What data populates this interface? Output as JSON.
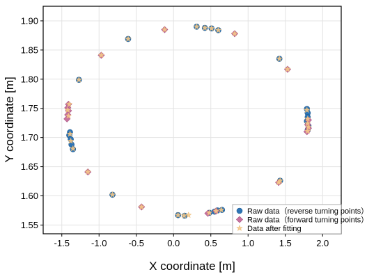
{
  "chart_data": {
    "type": "scatter",
    "xlabel": "X coordinate [m]",
    "ylabel": "Y coordinate [m]",
    "xlim": [
      -1.75,
      2.25
    ],
    "ylim": [
      1.535,
      1.925
    ],
    "x_ticks": [
      "-1.5",
      "-1.0",
      "-0.5",
      "0.0",
      "0.5",
      "1.0",
      "1.5",
      "2.0"
    ],
    "y_ticks": [
      "1.55",
      "1.60",
      "1.65",
      "1.70",
      "1.75",
      "1.80",
      "1.85",
      "1.90"
    ],
    "grid": true,
    "legend_position": "bottom-right",
    "series": [
      {
        "name": "Raw data（reverse turning points）",
        "marker": "circle",
        "color": "#2e75b6",
        "points": [
          [
            -1.39,
            1.709
          ],
          [
            -1.4,
            1.704
          ],
          [
            -1.38,
            1.697
          ],
          [
            -1.37,
            1.688
          ],
          [
            -1.35,
            1.68
          ],
          [
            -1.27,
            1.799
          ],
          [
            -0.61,
            1.869
          ],
          [
            -0.82,
            1.602
          ],
          [
            0.06,
            1.567
          ],
          [
            0.15,
            1.566
          ],
          [
            0.31,
            1.89
          ],
          [
            0.42,
            1.888
          ],
          [
            0.51,
            1.887
          ],
          [
            0.6,
            1.884
          ],
          [
            0.48,
            1.571
          ],
          [
            0.55,
            1.573
          ],
          [
            0.59,
            1.575
          ],
          [
            0.65,
            1.576
          ],
          [
            1.42,
            1.835
          ],
          [
            1.43,
            1.626
          ],
          [
            1.79,
            1.749
          ],
          [
            1.8,
            1.742
          ],
          [
            1.8,
            1.735
          ],
          [
            1.79,
            1.728
          ],
          [
            1.81,
            1.72
          ],
          [
            1.8,
            1.713
          ]
        ]
      },
      {
        "name": "Raw data（forward turning points）",
        "marker": "diamond",
        "color": "#c8739f",
        "points": [
          [
            -1.41,
            1.757
          ],
          [
            -1.42,
            1.751
          ],
          [
            -1.41,
            1.746
          ],
          [
            -1.42,
            1.739
          ],
          [
            -1.43,
            1.732
          ],
          [
            -0.97,
            1.841
          ],
          [
            -1.15,
            1.641
          ],
          [
            -0.43,
            1.581
          ],
          [
            -0.12,
            1.885
          ],
          [
            0.82,
            1.878
          ],
          [
            1.53,
            1.817
          ],
          [
            0.46,
            1.57
          ],
          [
            0.57,
            1.574
          ],
          [
            1.41,
            1.623
          ],
          [
            1.81,
            1.73
          ],
          [
            1.8,
            1.722
          ],
          [
            1.81,
            1.716
          ],
          [
            1.79,
            1.71
          ]
        ]
      },
      {
        "name": "Data after fitting",
        "marker": "star",
        "color": "#f5c98a",
        "points": [
          [
            -1.4,
            1.757
          ],
          [
            -1.42,
            1.747
          ],
          [
            -1.41,
            1.737
          ],
          [
            -1.39,
            1.706
          ],
          [
            -1.38,
            1.694
          ],
          [
            -1.35,
            1.681
          ],
          [
            -1.27,
            1.799
          ],
          [
            -0.97,
            1.841
          ],
          [
            -0.61,
            1.869
          ],
          [
            -0.12,
            1.885
          ],
          [
            0.31,
            1.89
          ],
          [
            0.42,
            1.888
          ],
          [
            0.51,
            1.887
          ],
          [
            0.6,
            1.884
          ],
          [
            0.82,
            1.878
          ],
          [
            1.42,
            1.835
          ],
          [
            1.53,
            1.817
          ],
          [
            1.79,
            1.747
          ],
          [
            1.8,
            1.732
          ],
          [
            1.8,
            1.724
          ],
          [
            1.81,
            1.718
          ],
          [
            1.8,
            1.711
          ],
          [
            1.43,
            1.626
          ],
          [
            1.41,
            1.623
          ],
          [
            0.64,
            1.576
          ],
          [
            0.57,
            1.574
          ],
          [
            0.48,
            1.571
          ],
          [
            0.2,
            1.567
          ],
          [
            0.14,
            1.566
          ],
          [
            0.06,
            1.567
          ],
          [
            -0.43,
            1.581
          ],
          [
            -0.82,
            1.602
          ],
          [
            -1.15,
            1.641
          ]
        ]
      }
    ]
  }
}
